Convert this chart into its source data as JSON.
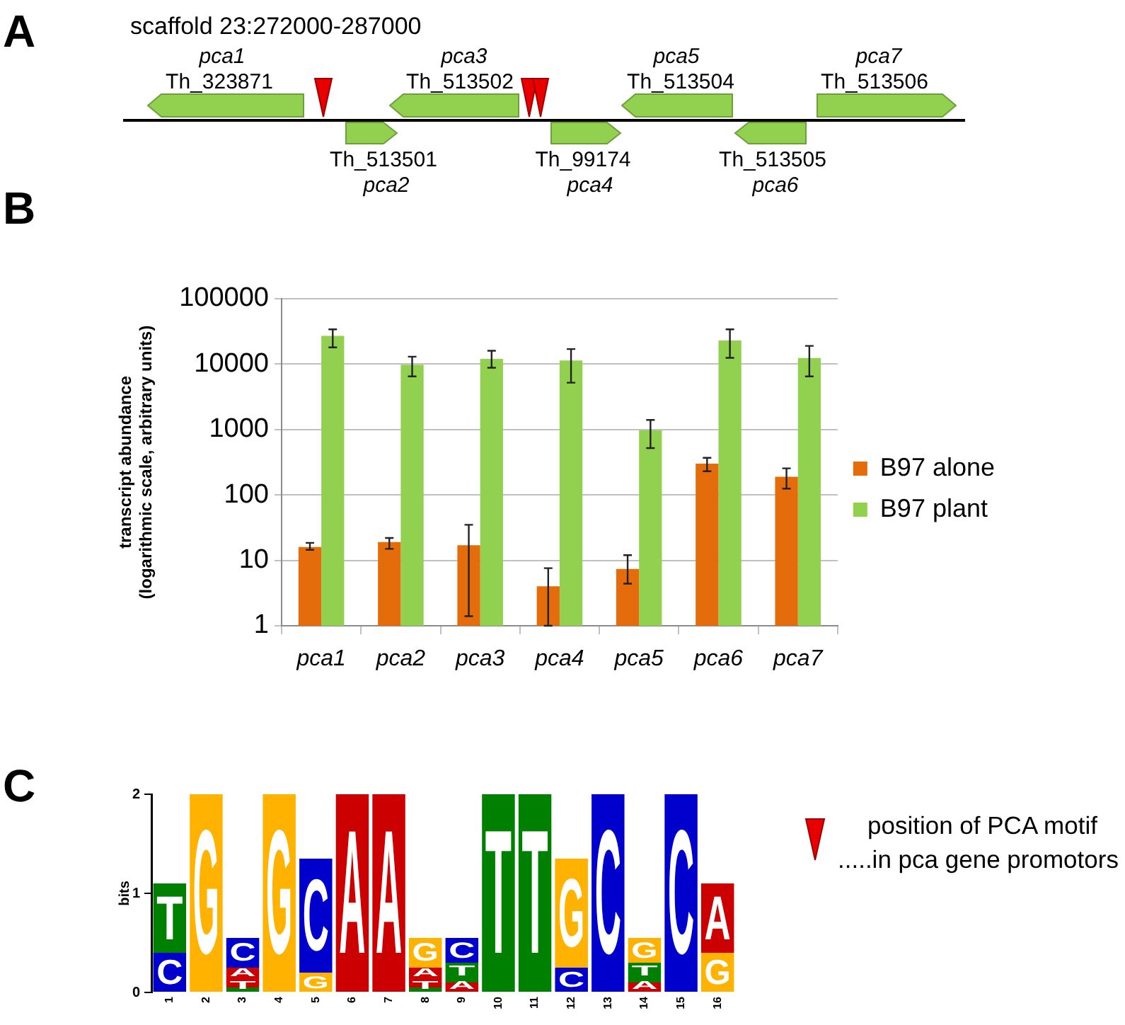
{
  "chart_data": [
    {
      "type": "other",
      "title": "A",
      "subtitle": "scaffold 23:272000-287000",
      "annotations": [
        "pca1",
        "Th_323871",
        "pca3",
        "Th_513502",
        "pca5",
        "Th_513504",
        "pca7",
        "Th_513506",
        "Th_513501",
        "pca2",
        "Th_99174",
        "pca4",
        "Th_513505",
        "pca6"
      ]
    },
    {
      "type": "bar",
      "title": "B",
      "ylabel": "transcript abundance\n(logarithmic scale, arbitrary units)",
      "categories": [
        "pca1",
        "pca2",
        "pca3",
        "pca4",
        "pca5",
        "pca6",
        "pca7"
      ],
      "series": [
        {
          "name": "B97 alone",
          "color": "#e46c0a",
          "values": [
            16,
            19,
            17,
            4,
            7.4,
            300,
            190
          ],
          "errors": [
            [
              14.5,
              18.5
            ],
            [
              15,
              22
            ],
            [
              1.4,
              35
            ],
            [
              1,
              7.6
            ],
            [
              4.4,
              12
            ],
            [
              230,
              370
            ],
            [
              125,
              255
            ]
          ]
        },
        {
          "name": "B97 plant",
          "color": "#92d050",
          "values": [
            27000,
            9800,
            12000,
            11400,
            970,
            23000,
            12400
          ],
          "errors": [
            [
              18000,
              34000
            ],
            [
              6500,
              13000
            ],
            [
              8800,
              16000
            ],
            [
              5200,
              17000
            ],
            [
              520,
              1400
            ],
            [
              12500,
              34000
            ],
            [
              6500,
              19000
            ]
          ]
        }
      ],
      "log": true,
      "ylim": [
        1,
        100000
      ],
      "yticks": [
        1,
        10,
        100,
        1000,
        10000,
        100000
      ],
      "grid": "y",
      "legend": "right"
    },
    {
      "type": "bar",
      "title": "C",
      "ylabel": "bits",
      "categories": [
        "1",
        "2",
        "3",
        "4",
        "5",
        "6",
        "7",
        "8",
        "9",
        "10",
        "11",
        "12",
        "13",
        "14",
        "15",
        "16"
      ],
      "stacked": true,
      "ylim": [
        0,
        2
      ],
      "yticks": [
        0,
        1,
        2
      ],
      "series": [
        {
          "values": [
            0.4,
            2,
            0.05,
            2,
            0.2,
            2,
            2,
            0.05,
            0.1,
            2,
            2,
            0.25,
            2,
            0.1,
            2,
            0.4
          ],
          "value_labels": [
            "C",
            "G",
            "T",
            "G",
            "G",
            "A",
            "A",
            "T",
            "A",
            "T",
            "T",
            "C",
            "C",
            "A",
            "C",
            "G"
          ],
          "colors": [
            "#0000cc",
            "#ffb300",
            "#008000",
            "#ffb300",
            "#ffb300",
            "#cc0000",
            "#cc0000",
            "#008000",
            "#cc0000",
            "#008000",
            "#008000",
            "#0000cc",
            "#0000cc",
            "#cc0000",
            "#0000cc",
            "#ffb300"
          ]
        },
        {
          "values": [
            0.7,
            null,
            0.2,
            null,
            1.15,
            null,
            null,
            0.2,
            0.2,
            null,
            null,
            1.1,
            null,
            0.2,
            null,
            0.7
          ],
          "value_labels": [
            "T",
            null,
            "A",
            null,
            "C",
            null,
            null,
            "A",
            "T",
            null,
            null,
            "G",
            null,
            "T",
            null,
            "A"
          ],
          "colors": [
            "#008000",
            null,
            "#cc0000",
            null,
            "#0000cc",
            null,
            null,
            "#cc0000",
            "#008000",
            null,
            null,
            "#ffb300",
            null,
            "#008000",
            null,
            "#cc0000"
          ]
        },
        {
          "values": [
            null,
            null,
            0.3,
            null,
            null,
            null,
            null,
            0.3,
            0.25,
            null,
            null,
            null,
            null,
            0.25,
            null,
            null
          ],
          "value_labels": [
            null,
            null,
            "C",
            null,
            null,
            null,
            null,
            "G",
            "C",
            null,
            null,
            null,
            null,
            "G",
            null,
            null
          ],
          "colors": [
            null,
            null,
            "#0000cc",
            null,
            null,
            null,
            null,
            "#ffb300",
            "#0000cc",
            null,
            null,
            null,
            null,
            "#ffb300",
            null,
            null
          ]
        }
      ],
      "annotations": [
        "position of PCA motif",
        ".....in pca gene promotors"
      ]
    }
  ]
}
